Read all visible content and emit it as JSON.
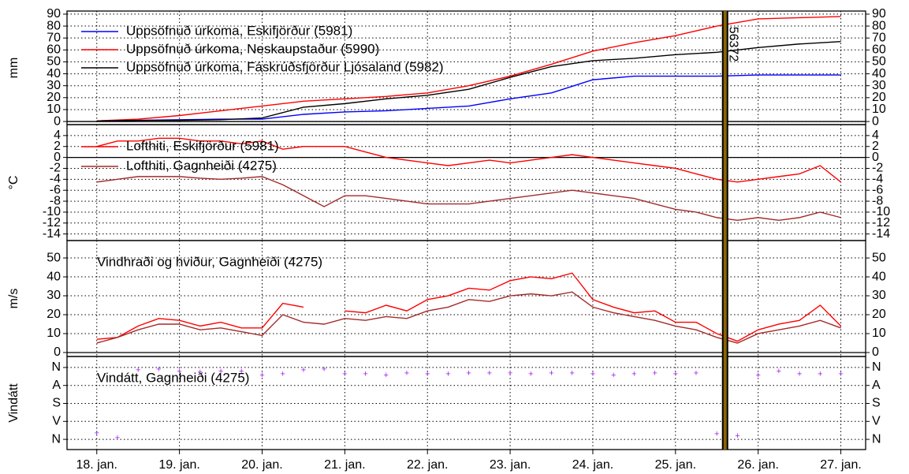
{
  "chart_data": [
    {
      "type": "line",
      "ylabel": "mm",
      "xlim": [
        -0.36,
        9.3
      ],
      "xticks": [
        0,
        1,
        2,
        3,
        4,
        5,
        6,
        7,
        8,
        9
      ],
      "ylim": [
        -2.6,
        92.6
      ],
      "yticks": [
        0,
        10,
        20,
        30,
        40,
        50,
        60,
        70,
        80,
        90
      ],
      "grid": true,
      "x": [
        0,
        0.5,
        1,
        1.5,
        2,
        2.5,
        3,
        3.5,
        4,
        4.5,
        5,
        5.5,
        6,
        6.5,
        7,
        7.5,
        8,
        8.5,
        9
      ],
      "series": [
        {
          "name": "Uppsöfnuð úrkoma, Eskifjörður (5981)",
          "color": "#0000ff",
          "values": [
            0.5,
            1,
            1.5,
            2,
            2,
            6,
            8,
            9,
            11,
            13,
            19,
            24,
            35,
            38,
            38,
            38,
            39,
            39,
            39
          ]
        },
        {
          "name": "Uppsöfnuð úrkoma, Neskaupstaður (5990)",
          "color": "#ff0000",
          "values": [
            0.5,
            2,
            5,
            9,
            13,
            17,
            19,
            21,
            24,
            30,
            38,
            48,
            59,
            66,
            72,
            80,
            86,
            87,
            88
          ]
        },
        {
          "name": "Uppsöfnuð úrkoma, Fáskrúðsfjörður Ljósaland (5982)",
          "color": "#000000",
          "values": [
            0.5,
            1,
            1,
            1.5,
            3,
            12,
            15,
            19,
            22,
            27,
            37,
            46,
            51,
            53,
            56,
            58,
            62,
            65,
            67
          ]
        }
      ],
      "annotations": [
        {
          "x": 7.6,
          "text": "56372"
        }
      ]
    },
    {
      "type": "line",
      "ylabel": "°C",
      "xlim": [
        -0.36,
        9.3
      ],
      "xticks": [
        0,
        1,
        2,
        3,
        4,
        5,
        6,
        7,
        8,
        9
      ],
      "ylim": [
        -15.2,
        6
      ],
      "yticks": [
        4,
        2,
        0,
        -2,
        -4,
        -6,
        -8,
        -10,
        -12,
        -14
      ],
      "grid": true,
      "x": [
        0,
        0.25,
        0.5,
        0.75,
        1,
        1.25,
        1.5,
        1.75,
        2,
        2.25,
        2.5,
        2.75,
        3,
        3.25,
        3.5,
        3.75,
        4,
        4.25,
        4.5,
        4.75,
        5,
        5.25,
        5.5,
        5.75,
        6,
        6.25,
        6.5,
        6.75,
        7,
        7.25,
        7.5,
        7.75,
        8,
        8.25,
        8.5,
        8.75,
        9
      ],
      "series": [
        {
          "name": "Lofthiti, Eskifjörður (5981)",
          "color": "#ff0000",
          "values": [
            2,
            3,
            3,
            3.5,
            3.5,
            3,
            3,
            2.5,
            3,
            1.5,
            2,
            2,
            2,
            1,
            0,
            -0.5,
            -1,
            -1.5,
            -1,
            -0.5,
            -1,
            -0.5,
            0,
            0.5,
            0,
            -0.5,
            -1,
            -1.5,
            -2,
            -3,
            -4,
            -4.5,
            -4,
            -3.5,
            -3,
            -1.5,
            -4.5
          ]
        },
        {
          "name": "Lofthiti, Gagnheiði (4275)",
          "color": "#a52a2a",
          "values": [
            -4.5,
            -4,
            -3.5,
            -3.5,
            -3.5,
            -3.8,
            -4,
            -3.8,
            -3.5,
            -5,
            -7,
            -9,
            -7,
            -7,
            -7.5,
            -8,
            -8.5,
            -8.5,
            -8.5,
            -8,
            -7.5,
            -7,
            -6.5,
            -6,
            -6.5,
            -7,
            -7.5,
            -8.5,
            -9.5,
            -10,
            -11,
            -11.5,
            -11,
            -11.5,
            -11,
            -10,
            -11
          ]
        }
      ]
    },
    {
      "type": "line",
      "ylabel": "m/s",
      "title": "Vindhraði og hviður, Gagnheiði (4275)",
      "xlim": [
        -0.36,
        9.3
      ],
      "xticks": [
        0,
        1,
        2,
        3,
        4,
        5,
        6,
        7,
        8,
        9
      ],
      "ylim": [
        -2.1,
        59.2
      ],
      "yticks": [
        0,
        10,
        20,
        30,
        40,
        50
      ],
      "grid": true,
      "x": [
        0,
        0.25,
        0.5,
        0.75,
        1,
        1.25,
        1.5,
        1.75,
        2,
        2.25,
        2.5,
        2.75,
        3,
        3.25,
        3.5,
        3.75,
        4,
        4.25,
        4.5,
        4.75,
        5,
        5.25,
        5.5,
        5.75,
        6,
        6.25,
        6.5,
        6.75,
        7,
        7.25,
        7.5,
        7.75,
        8,
        8.25,
        8.5,
        8.75,
        9
      ],
      "series": [
        {
          "color": "#ff0000",
          "values": [
            7,
            8,
            14,
            18,
            17,
            14,
            16,
            13,
            13,
            26,
            24,
            null,
            22,
            21,
            25,
            22,
            28,
            30,
            34,
            33,
            38,
            40,
            39,
            42,
            28,
            24,
            21,
            22,
            16,
            16,
            10,
            6,
            12,
            15,
            17,
            25,
            14
          ]
        },
        {
          "color": "#a52a2a",
          "values": [
            5,
            8,
            12,
            15,
            15,
            12,
            13,
            11,
            9,
            20,
            16,
            15,
            18,
            17,
            19,
            18,
            22,
            24,
            28,
            27,
            30,
            31,
            30,
            32,
            24,
            21,
            19,
            17,
            14,
            12,
            8,
            5,
            10,
            12,
            14,
            17,
            13
          ]
        }
      ]
    },
    {
      "type": "scatter",
      "ylabel": "Vindátt",
      "title": "Vindátt, Gagnheiði (4275)",
      "xlim": [
        -0.36,
        9.3
      ],
      "xticks": [
        {
          "value": 0,
          "label": "18. jan."
        },
        {
          "value": 1,
          "label": "19. jan."
        },
        {
          "value": 2,
          "label": "20. jan."
        },
        {
          "value": 3,
          "label": "21. jan."
        },
        {
          "value": 4,
          "label": "22. jan."
        },
        {
          "value": 5,
          "label": "23. jan."
        },
        {
          "value": 6,
          "label": "24. jan."
        },
        {
          "value": 7,
          "label": "25. jan."
        },
        {
          "value": 8,
          "label": "26. jan."
        },
        {
          "value": 9,
          "label": "27. jan."
        }
      ],
      "ylim": [
        411,
        -55
      ],
      "yticks": [
        {
          "value": 0,
          "label": "N"
        },
        {
          "value": 90,
          "label": "A"
        },
        {
          "value": 180,
          "label": "S"
        },
        {
          "value": 270,
          "label": "V"
        },
        {
          "value": 360,
          "label": "N"
        }
      ],
      "grid": true,
      "x": [
        0,
        0.25,
        0.5,
        0.75,
        1,
        1.25,
        1.5,
        1.75,
        2,
        2.25,
        2.5,
        2.75,
        3,
        3.25,
        3.5,
        3.75,
        4,
        4.25,
        4.5,
        4.75,
        5,
        5.25,
        5.5,
        5.75,
        6,
        6.25,
        6.5,
        6.75,
        7,
        7.25,
        7.5,
        7.75,
        8,
        8.25,
        8.5,
        8.75,
        9
      ],
      "color": "#a020f0",
      "values": [
        330,
        355,
        15,
        10,
        20,
        25,
        20,
        20,
        40,
        35,
        15,
        10,
        35,
        35,
        40,
        30,
        35,
        35,
        30,
        30,
        30,
        35,
        30,
        30,
        35,
        40,
        35,
        30,
        35,
        30,
        335,
        345,
        40,
        20,
        35,
        35,
        35
      ]
    }
  ]
}
